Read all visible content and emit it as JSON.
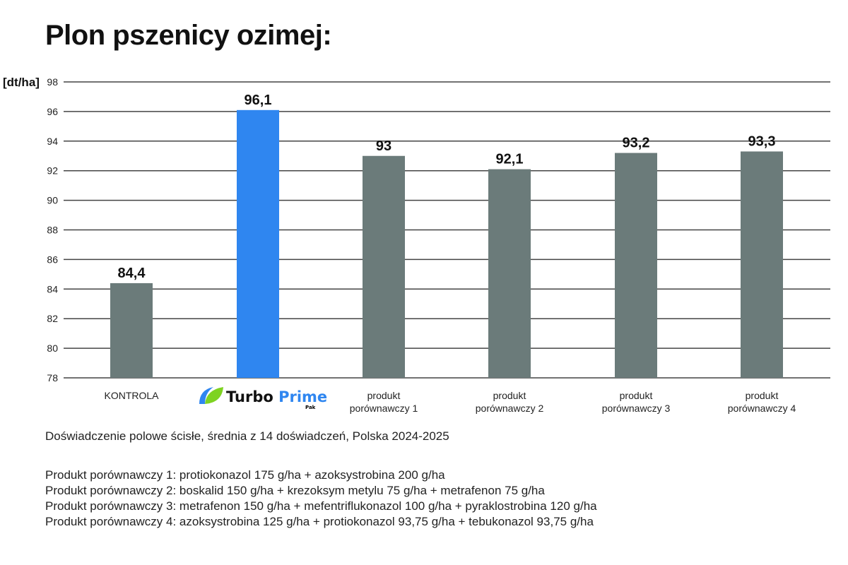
{
  "chart_data": {
    "type": "bar",
    "title": "Plon pszenicy ozimej:",
    "ylabel": "[dt/ha]",
    "xlabel": "",
    "ylim": [
      78,
      98
    ],
    "yticks": [
      78,
      80,
      82,
      84,
      86,
      88,
      90,
      92,
      94,
      96,
      98
    ],
    "grid": true,
    "categories": [
      "KONTROLA",
      "Turbo Prime Pak",
      "produkt porównawczy 1",
      "produkt porównawczy 2",
      "produkt porównawczy 3",
      "produkt porównawczy 4"
    ],
    "category_lines": [
      [
        "KONTROLA"
      ],
      [
        "Turbo Prime"
      ],
      [
        "produkt",
        "porównawczy 1"
      ],
      [
        "produkt",
        "porównawczy 2"
      ],
      [
        "produkt",
        "porównawczy 3"
      ],
      [
        "produkt",
        "porównawczy 4"
      ]
    ],
    "values": [
      84.4,
      96.1,
      93,
      92.1,
      93.2,
      93.3
    ],
    "data_labels": [
      "84,4",
      "96,1",
      "93",
      "92,1",
      "93,2",
      "93,3"
    ],
    "colors": [
      "#6b7b7a",
      "#2f86f0",
      "#6b7b7a",
      "#6b7b7a",
      "#6b7b7a",
      "#6b7b7a"
    ]
  },
  "logo": {
    "word1": "Turbo",
    "word2": "Prime",
    "sub": "Pak",
    "blue": "#2f86f0",
    "green": "#7ed321"
  },
  "source_note": "Doświadczenie polowe ścisłe, średnia z 14 doświadczeń, Polska 2024-2025",
  "legend": [
    "Produkt porównawczy 1: protiokonazol 175 g/ha + azoksystrobina 200 g/ha",
    "Produkt porównawczy 2: boskalid 150 g/ha + krezoksym metylu 75 g/ha + metrafenon 75 g/ha",
    "Produkt porównawczy 3: metrafenon 150 g/ha + mefentrifl ukonazol 100 g/ha + pyraklostrobina 120 g/ha",
    "Produkt porównawczy 4: azoksystrobina 125 g/ha + protiokonazol 93,75 g/ha + tebukonazol 93,75 g/ha"
  ]
}
